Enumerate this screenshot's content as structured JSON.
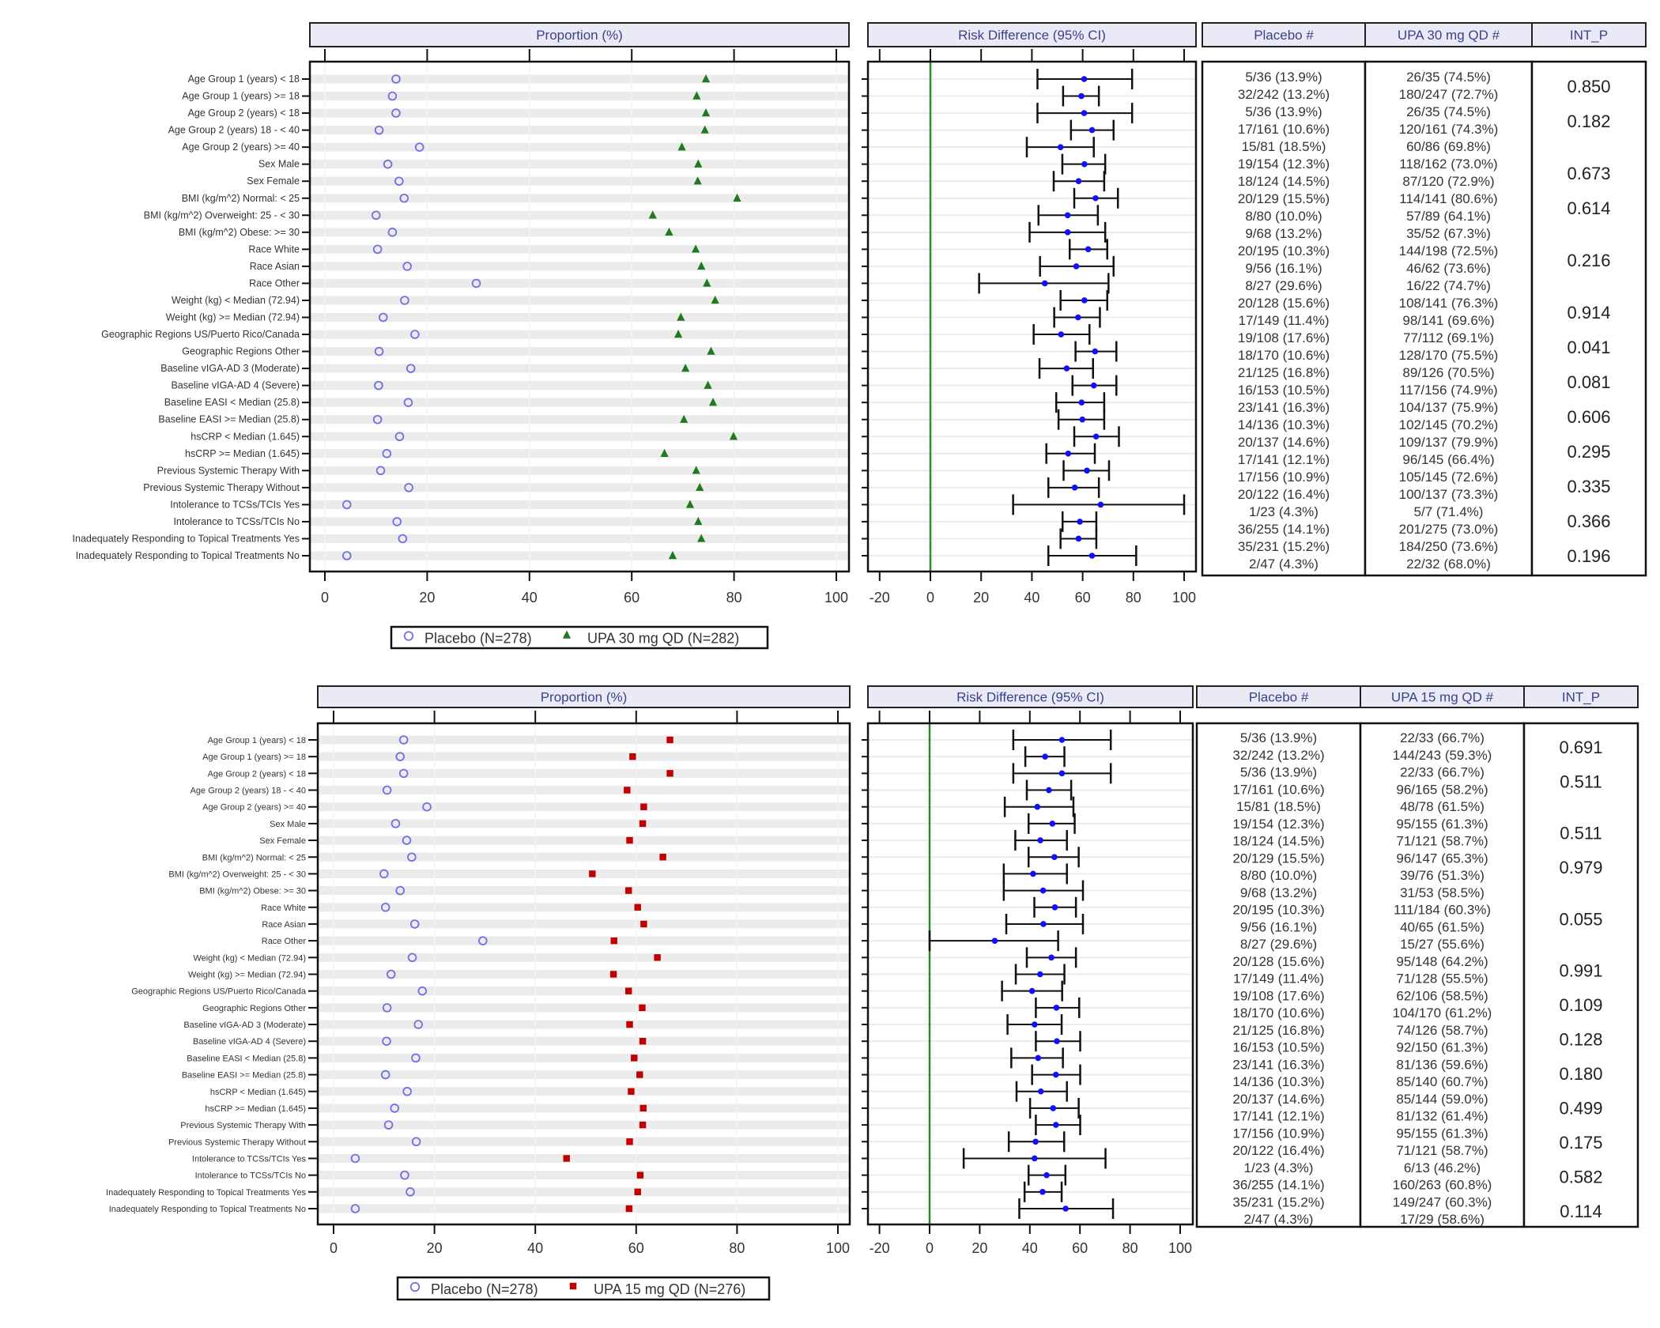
{
  "chart_data": [
    {
      "type": "forest",
      "panel_headers": {
        "proportion": "Proportion (%)",
        "risk_difference": "Risk Difference (95% CI)",
        "placebo_col": "Placebo #",
        "active_col": "UPA 30 mg QD #",
        "int_p_col": "INT_P"
      },
      "legend": [
        {
          "label": "Placebo (N=278)",
          "marker": "open-circle",
          "color": "#6f6fe6"
        },
        {
          "label": "UPA 30 mg QD (N=282)",
          "marker": "triangle",
          "color": "#1f7a1f"
        }
      ],
      "proportion_axis": {
        "range": [
          0,
          100
        ],
        "ticks": [
          "0",
          "20",
          "40",
          "60",
          "80",
          "100"
        ]
      },
      "rd_axis": {
        "range": [
          -20,
          100
        ],
        "ticks": [
          "-20",
          "0",
          "20",
          "40",
          "60",
          "80",
          "100"
        ],
        "reference_line": 0
      },
      "categories": [
        "Age Group 1 (years) < 18",
        "Age Group 1 (years) >= 18",
        "Age Group 2 (years) < 18",
        "Age Group 2 (years) 18 - < 40",
        "Age Group 2 (years) >= 40",
        "Sex Male",
        "Sex Female",
        "BMI (kg/m^2) Normal: < 25",
        "BMI (kg/m^2) Overweight: 25 - < 30",
        "BMI (kg/m^2) Obese: >= 30",
        "Race White",
        "Race Asian",
        "Race Other",
        "Weight (kg) < Median (72.94)",
        "Weight (kg) >= Median (72.94)",
        "Geographic Regions US/Puerto Rico/Canada",
        "Geographic Regions Other",
        "Baseline vIGA-AD 3 (Moderate)",
        "Baseline vIGA-AD 4 (Severe)",
        "Baseline EASI < Median (25.8)",
        "Baseline EASI >= Median (25.8)",
        "hsCRP < Median (1.645)",
        "hsCRP >= Median (1.645)",
        "Previous Systemic Therapy With",
        "Previous Systemic Therapy Without",
        "Intolerance to TCSs/TCIs Yes",
        "Intolerance to TCSs/TCIs No",
        "Inadequately Responding to Topical Treatments Yes",
        "Inadequately Responding to Topical Treatments No"
      ],
      "placebo_pct": [
        13.9,
        13.2,
        13.9,
        10.6,
        18.5,
        12.3,
        14.5,
        15.5,
        10.0,
        13.2,
        10.3,
        16.1,
        29.6,
        15.6,
        11.4,
        17.6,
        10.6,
        16.8,
        10.5,
        16.3,
        10.3,
        14.6,
        12.1,
        10.9,
        16.4,
        4.3,
        14.1,
        15.2,
        4.3
      ],
      "active_pct": [
        74.5,
        72.7,
        74.5,
        74.3,
        69.8,
        73.0,
        72.9,
        80.6,
        64.1,
        67.3,
        72.5,
        73.6,
        74.7,
        76.3,
        69.6,
        69.1,
        75.5,
        70.5,
        74.9,
        75.9,
        70.2,
        79.9,
        66.4,
        72.6,
        73.3,
        71.4,
        73.0,
        73.6,
        68.0
      ],
      "rd_estimate": [
        60.6,
        59.5,
        60.6,
        63.7,
        51.3,
        60.7,
        58.4,
        65.1,
        54.1,
        54.1,
        62.2,
        57.5,
        45.1,
        60.7,
        58.2,
        51.5,
        64.9,
        53.7,
        64.4,
        59.6,
        59.9,
        65.3,
        54.3,
        61.7,
        56.9,
        67.1,
        58.9,
        58.4,
        63.7
      ],
      "rd_ci_low": [
        42.2,
        52.3,
        42.2,
        55.4,
        38.0,
        52.0,
        48.6,
        56.7,
        42.6,
        39.1,
        54.9,
        43.2,
        19.2,
        51.3,
        48.8,
        40.7,
        57.2,
        43.0,
        56.0,
        49.6,
        50.5,
        56.7,
        45.7,
        52.5,
        46.5,
        32.6,
        52.1,
        51.3,
        46.5
      ],
      "rd_ci_high": [
        79.5,
        66.4,
        79.5,
        72.2,
        64.4,
        68.9,
        68.5,
        73.9,
        66.0,
        68.9,
        69.7,
        72.2,
        70.2,
        69.7,
        66.8,
        62.7,
        73.3,
        64.1,
        73.3,
        68.5,
        68.5,
        74.3,
        64.8,
        70.4,
        66.4,
        100.0,
        65.4,
        65.4,
        81.1
      ],
      "placebo_counts": [
        "5/36 (13.9%)",
        "32/242 (13.2%)",
        "5/36 (13.9%)",
        "17/161 (10.6%)",
        "15/81 (18.5%)",
        "19/154 (12.3%)",
        "18/124 (14.5%)",
        "20/129 (15.5%)",
        "8/80 (10.0%)",
        "9/68 (13.2%)",
        "20/195 (10.3%)",
        "9/56 (16.1%)",
        "8/27 (29.6%)",
        "20/128 (15.6%)",
        "17/149 (11.4%)",
        "19/108 (17.6%)",
        "18/170 (10.6%)",
        "21/125 (16.8%)",
        "16/153 (10.5%)",
        "23/141 (16.3%)",
        "14/136 (10.3%)",
        "20/137 (14.6%)",
        "17/141 (12.1%)",
        "17/156 (10.9%)",
        "20/122 (16.4%)",
        "1/23 (4.3%)",
        "36/255 (14.1%)",
        "35/231 (15.2%)",
        "2/47 (4.3%)"
      ],
      "active_counts": [
        "26/35 (74.5%)",
        "180/247 (72.7%)",
        "26/35 (74.5%)",
        "120/161 (74.3%)",
        "60/86 (69.8%)",
        "118/162 (73.0%)",
        "87/120 (72.9%)",
        "114/141 (80.6%)",
        "57/89 (64.1%)",
        "35/52 (67.3%)",
        "144/198 (72.5%)",
        "46/62 (73.6%)",
        "16/22 (74.7%)",
        "108/141 (76.3%)",
        "98/141 (69.6%)",
        "77/112 (69.1%)",
        "128/170 (75.5%)",
        "89/126 (70.5%)",
        "117/156 (74.9%)",
        "104/137 (75.9%)",
        "102/145 (70.2%)",
        "109/137 (79.9%)",
        "96/145 (66.4%)",
        "105/145 (72.6%)",
        "100/137 (73.3%)",
        "5/7 (71.4%)",
        "201/275 (73.0%)",
        "184/250 (73.6%)",
        "22/32 (68.0%)"
      ],
      "int_p": [
        {
          "value": "0.850",
          "rows": [
            0,
            1
          ]
        },
        {
          "value": "0.182",
          "rows": [
            2,
            3,
            4
          ]
        },
        {
          "value": "0.673",
          "rows": [
            5,
            6
          ]
        },
        {
          "value": "0.614",
          "rows": [
            7,
            8,
            9
          ]
        },
        {
          "value": "0.216",
          "rows": [
            10,
            11,
            12
          ]
        },
        {
          "value": "0.914",
          "rows": [
            13,
            14
          ]
        },
        {
          "value": "0.041",
          "rows": [
            15,
            16
          ]
        },
        {
          "value": "0.081",
          "rows": [
            17,
            18
          ]
        },
        {
          "value": "0.606",
          "rows": [
            19,
            20
          ]
        },
        {
          "value": "0.295",
          "rows": [
            21,
            22
          ]
        },
        {
          "value": "0.335",
          "rows": [
            23,
            24
          ]
        },
        {
          "value": "0.366",
          "rows": [
            25,
            26
          ]
        },
        {
          "value": "0.196",
          "rows": [
            27,
            28
          ]
        }
      ],
      "colors": {
        "header_fill": "#e9eaf5",
        "header_text": "#3b418c",
        "stripe": "#ebebeb",
        "rd_point": "#1010ff",
        "reference_line": "#2e8b2e"
      }
    },
    {
      "type": "forest",
      "panel_headers": {
        "proportion": "Proportion (%)",
        "risk_difference": "Risk Difference (95% CI)",
        "placebo_col": "Placebo #",
        "active_col": "UPA 15 mg QD #",
        "int_p_col": "INT_P"
      },
      "legend": [
        {
          "label": "Placebo (N=278)",
          "marker": "open-circle",
          "color": "#6f6fe6"
        },
        {
          "label": "UPA 15 mg QD (N=276)",
          "marker": "square",
          "color": "#c00000"
        }
      ],
      "proportion_axis": {
        "range": [
          0,
          100
        ],
        "ticks": [
          "0",
          "20",
          "40",
          "60",
          "80",
          "100"
        ]
      },
      "rd_axis": {
        "range": [
          -20,
          100
        ],
        "ticks": [
          "-20",
          "0",
          "20",
          "40",
          "60",
          "80",
          "100"
        ],
        "reference_line": 0
      },
      "categories": [
        "Age Group 1 (years) < 18",
        "Age Group 1 (years) >= 18",
        "Age Group 2 (years) < 18",
        "Age Group 2 (years) 18 - < 40",
        "Age Group 2 (years) >= 40",
        "Sex Male",
        "Sex Female",
        "BMI (kg/m^2) Normal: < 25",
        "BMI (kg/m^2) Overweight: 25 - < 30",
        "BMI (kg/m^2) Obese: >= 30",
        "Race White",
        "Race Asian",
        "Race Other",
        "Weight (kg) < Median (72.94)",
        "Weight (kg) >= Median (72.94)",
        "Geographic Regions US/Puerto Rico/Canada",
        "Geographic Regions Other",
        "Baseline vIGA-AD 3 (Moderate)",
        "Baseline vIGA-AD 4 (Severe)",
        "Baseline EASI < Median (25.8)",
        "Baseline EASI >= Median (25.8)",
        "hsCRP < Median (1.645)",
        "hsCRP >= Median (1.645)",
        "Previous Systemic Therapy With",
        "Previous Systemic Therapy Without",
        "Intolerance to TCSs/TCIs Yes",
        "Intolerance to TCSs/TCIs No",
        "Inadequately Responding to Topical Treatments Yes",
        "Inadequately Responding to Topical Treatments No"
      ],
      "placebo_pct": [
        13.9,
        13.2,
        13.9,
        10.6,
        18.5,
        12.3,
        14.5,
        15.5,
        10.0,
        13.2,
        10.3,
        16.1,
        29.6,
        15.6,
        11.4,
        17.6,
        10.6,
        16.8,
        10.5,
        16.3,
        10.3,
        14.6,
        12.1,
        10.9,
        16.4,
        4.3,
        14.1,
        15.2,
        4.3
      ],
      "active_pct": [
        66.7,
        59.3,
        66.7,
        58.2,
        61.5,
        61.3,
        58.7,
        65.3,
        51.3,
        58.5,
        60.3,
        61.5,
        55.6,
        64.2,
        55.5,
        58.5,
        61.2,
        58.7,
        61.3,
        59.6,
        60.7,
        59.0,
        61.4,
        61.3,
        58.7,
        46.2,
        60.8,
        60.3,
        58.6
      ],
      "rd_estimate": [
        52.8,
        46.1,
        52.8,
        47.6,
        43.0,
        49.0,
        44.2,
        49.8,
        41.3,
        45.3,
        50.0,
        45.4,
        26.0,
        48.6,
        44.1,
        40.9,
        50.6,
        41.9,
        50.8,
        43.3,
        50.4,
        44.4,
        49.3,
        50.4,
        42.3,
        41.9,
        46.7,
        45.1,
        54.3
      ],
      "rd_ci_low": [
        33.4,
        38.2,
        33.4,
        38.8,
        30.0,
        39.5,
        34.2,
        39.5,
        29.6,
        29.6,
        41.8,
        30.6,
        0.0,
        38.8,
        34.4,
        28.9,
        42.4,
        31.1,
        42.4,
        32.6,
        40.9,
        34.7,
        40.1,
        42.4,
        31.6,
        13.6,
        39.5,
        37.9,
        35.8
      ],
      "rd_ci_high": [
        72.3,
        53.8,
        72.3,
        56.5,
        57.4,
        57.9,
        54.8,
        59.5,
        54.8,
        61.2,
        58.4,
        61.2,
        51.3,
        58.4,
        53.8,
        52.9,
        59.7,
        52.7,
        60.1,
        53.2,
        60.1,
        54.8,
        59.5,
        60.1,
        53.7,
        70.2,
        54.2,
        52.7,
        73.2
      ],
      "placebo_counts": [
        "5/36 (13.9%)",
        "32/242 (13.2%)",
        "5/36 (13.9%)",
        "17/161 (10.6%)",
        "15/81 (18.5%)",
        "19/154 (12.3%)",
        "18/124 (14.5%)",
        "20/129 (15.5%)",
        "8/80 (10.0%)",
        "9/68 (13.2%)",
        "20/195 (10.3%)",
        "9/56 (16.1%)",
        "8/27 (29.6%)",
        "20/128 (15.6%)",
        "17/149 (11.4%)",
        "19/108 (17.6%)",
        "18/170 (10.6%)",
        "21/125 (16.8%)",
        "16/153 (10.5%)",
        "23/141 (16.3%)",
        "14/136 (10.3%)",
        "20/137 (14.6%)",
        "17/141 (12.1%)",
        "17/156 (10.9%)",
        "20/122 (16.4%)",
        "1/23 (4.3%)",
        "36/255 (14.1%)",
        "35/231 (15.2%)",
        "2/47 (4.3%)"
      ],
      "active_counts": [
        "22/33 (66.7%)",
        "144/243 (59.3%)",
        "22/33 (66.7%)",
        "96/165 (58.2%)",
        "48/78 (61.5%)",
        "95/155 (61.3%)",
        "71/121 (58.7%)",
        "96/147 (65.3%)",
        "39/76 (51.3%)",
        "31/53 (58.5%)",
        "111/184 (60.3%)",
        "40/65 (61.5%)",
        "15/27 (55.6%)",
        "95/148 (64.2%)",
        "71/128 (55.5%)",
        "62/106 (58.5%)",
        "104/170 (61.2%)",
        "74/126 (58.7%)",
        "92/150 (61.3%)",
        "81/136 (59.6%)",
        "85/140 (60.7%)",
        "85/144 (59.0%)",
        "81/132 (61.4%)",
        "95/155 (61.3%)",
        "71/121 (58.7%)",
        "6/13 (46.2%)",
        "160/263 (60.8%)",
        "149/247 (60.3%)",
        "17/29 (58.6%)"
      ],
      "int_p": [
        {
          "value": "0.691",
          "rows": [
            0,
            1
          ]
        },
        {
          "value": "0.511",
          "rows": [
            2,
            3,
            4
          ]
        },
        {
          "value": "0.511",
          "rows": [
            5,
            6
          ]
        },
        {
          "value": "0.979",
          "rows": [
            7,
            8,
            9
          ]
        },
        {
          "value": "0.055",
          "rows": [
            10,
            11,
            12
          ]
        },
        {
          "value": "0.991",
          "rows": [
            13,
            14
          ]
        },
        {
          "value": "0.109",
          "rows": [
            15,
            16
          ]
        },
        {
          "value": "0.128",
          "rows": [
            17,
            18
          ]
        },
        {
          "value": "0.180",
          "rows": [
            19,
            20
          ]
        },
        {
          "value": "0.499",
          "rows": [
            21,
            22
          ]
        },
        {
          "value": "0.175",
          "rows": [
            23,
            24
          ]
        },
        {
          "value": "0.582",
          "rows": [
            25,
            26
          ]
        },
        {
          "value": "0.114",
          "rows": [
            27,
            28
          ]
        }
      ],
      "colors": {
        "header_fill": "#e9eaf5",
        "header_text": "#3b418c",
        "stripe": "#ebebeb",
        "rd_point": "#1010ff",
        "reference_line": "#2e8b2e"
      }
    }
  ]
}
